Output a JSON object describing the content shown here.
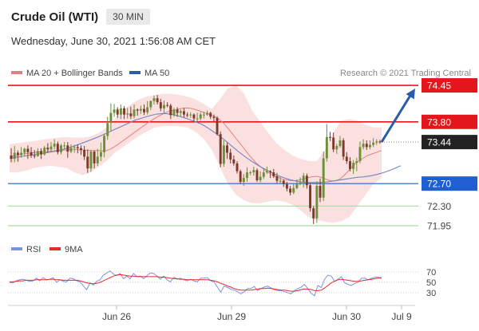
{
  "header": {
    "title": "Crude Oil (WTI)",
    "timeframe": "30 MIN",
    "datetime": "Wednesday, June 30, 2021 1:56:08 AM CET"
  },
  "legend": {
    "ma20_label": "MA 20 + Bollinger Bands",
    "ma50_label": "MA 50",
    "copyright": "Research © 2021 Trading Central"
  },
  "rsi_legend": {
    "rsi_label": "RSI",
    "ma_label": "9MA"
  },
  "colors": {
    "resistance": "#e3171b",
    "pivot": "#1f5fd1",
    "support": "#a9d9a0",
    "current": "#222222",
    "arrow": "#2a5ca8",
    "up_candle": "#6b8f3a",
    "down_candle": "#7b3a2a",
    "ma20": "#e57f7f",
    "bands": "#fadada",
    "ma50": "#7386c2",
    "rsi": "#7b93e2",
    "rsi_ma": "#e22b2b"
  },
  "chart_data": {
    "type": "line",
    "subtype": "candlestick-with-levels",
    "y_range": [
      71.85,
      74.55
    ],
    "levels": [
      {
        "value": 74.45,
        "label": "74.45",
        "kind": "resistance"
      },
      {
        "value": 73.8,
        "label": "73.80",
        "kind": "resistance"
      },
      {
        "value": 73.44,
        "label": "73.44",
        "kind": "current"
      },
      {
        "value": 72.7,
        "label": "72.70",
        "kind": "pivot"
      },
      {
        "value": 72.3,
        "label": "72.30",
        "kind": "support"
      },
      {
        "value": 71.95,
        "label": "71.95",
        "kind": "support"
      }
    ],
    "forecast": {
      "from": 73.44,
      "to": 74.45,
      "direction": "up"
    },
    "x_ticks": [
      "Jun 26",
      "Jun 29",
      "Jun 30",
      "Jul 9"
    ],
    "candles": {
      "open": [
        73.2,
        73.14,
        73.25,
        73.21,
        73.25,
        73.32,
        73.26,
        73.2,
        73.19,
        73.28,
        73.22,
        73.34,
        73.31,
        73.36,
        73.41,
        73.26,
        73.38,
        73.38,
        73.27,
        73.34,
        73.35,
        73.33,
        73.3,
        73.18,
        72.97,
        73.27,
        73.06,
        73.18,
        73.26,
        73.55,
        73.78,
        73.96,
        74.02,
        73.93,
        74.04,
        73.93,
        73.95,
        73.9,
        74.02,
        74.0,
        74.03,
        73.97,
        74.06,
        74.17,
        74.22,
        74.15,
        74.04,
        74.1,
        74.09,
        73.92,
        74.02,
        73.96,
        73.99,
        73.93,
        73.92,
        73.93,
        73.86,
        73.86,
        73.93,
        73.93,
        73.96,
        73.89,
        73.87,
        73.58,
        73.05,
        73.38,
        73.25,
        73.13,
        73.06,
        72.92,
        72.73,
        72.8,
        72.9,
        72.9,
        72.94,
        72.76,
        72.82,
        72.9,
        72.92,
        72.9,
        72.83,
        72.75,
        72.75,
        72.69,
        72.61,
        72.54,
        72.62,
        72.69,
        72.72,
        72.84,
        72.67,
        72.26,
        72.08,
        72.66,
        72.45,
        73.15,
        73.53,
        73.52,
        73.31,
        73.37,
        73.47,
        73.18,
        73.1,
        72.96,
        73.07,
        73.1,
        73.35,
        73.41,
        73.35,
        73.39,
        73.43,
        73.45
      ],
      "high": [
        73.33,
        73.37,
        73.29,
        73.35,
        73.34,
        73.38,
        73.35,
        73.3,
        73.33,
        73.33,
        73.37,
        73.42,
        73.44,
        73.49,
        73.45,
        73.41,
        73.44,
        73.44,
        73.4,
        73.39,
        73.4,
        73.38,
        73.37,
        73.31,
        73.3,
        73.29,
        73.32,
        73.43,
        73.59,
        73.89,
        74.13,
        74.12,
        74.06,
        74.11,
        74.08,
        74.05,
        74.07,
        74.11,
        74.04,
        74.09,
        74.11,
        74.17,
        74.18,
        74.27,
        74.28,
        74.21,
        74.18,
        74.15,
        74.12,
        74.05,
        74.06,
        74.02,
        74.05,
        73.97,
        73.97,
        73.95,
        73.96,
        73.97,
        73.98,
        74.0,
        73.98,
        73.93,
        73.9,
        73.63,
        73.47,
        73.43,
        73.32,
        73.2,
        73.1,
        72.95,
        72.87,
        72.99,
        72.93,
        73.0,
        72.97,
        72.92,
        72.95,
        73.0,
        72.94,
        72.96,
        72.89,
        72.82,
        72.77,
        72.73,
        72.66,
        72.7,
        72.77,
        72.81,
        72.89,
        72.88,
        72.71,
        72.3,
        72.74,
        72.79,
        73.27,
        73.76,
        73.62,
        73.61,
        73.41,
        73.55,
        73.51,
        73.26,
        73.17,
        73.12,
        73.16,
        73.45,
        73.49,
        73.47,
        73.47,
        73.51,
        73.49,
        73.48
      ],
      "low": [
        73.08,
        73.08,
        73.09,
        73.16,
        73.19,
        73.14,
        73.16,
        73.15,
        73.18,
        73.14,
        73.2,
        73.25,
        73.26,
        73.31,
        73.22,
        73.22,
        73.31,
        73.16,
        73.24,
        73.25,
        73.24,
        73.21,
        73.12,
        72.89,
        72.91,
        72.97,
        73.01,
        73.1,
        73.17,
        73.48,
        73.64,
        73.89,
        73.87,
        73.85,
        73.85,
        73.86,
        73.85,
        73.86,
        73.91,
        73.94,
        73.92,
        73.93,
        74.01,
        74.11,
        74.11,
        73.99,
        73.95,
        74.06,
        73.85,
        73.89,
        73.89,
        73.89,
        73.88,
        73.88,
        73.87,
        73.79,
        73.81,
        73.82,
        73.86,
        73.91,
        73.85,
        73.8,
        73.56,
        72.99,
        73.0,
        73.14,
        73.06,
        73.02,
        72.88,
        72.69,
        72.66,
        72.73,
        72.85,
        72.84,
        72.73,
        72.72,
        72.78,
        72.87,
        72.8,
        72.8,
        72.71,
        72.7,
        72.64,
        72.56,
        72.49,
        72.51,
        72.6,
        72.67,
        72.63,
        72.61,
        72.2,
        71.98,
        72.0,
        72.37,
        72.39,
        73.09,
        73.46,
        73.26,
        73.23,
        73.34,
        73.12,
        73.05,
        72.92,
        72.87,
        72.92,
        73.06,
        73.31,
        73.3,
        73.31,
        73.35,
        73.39,
        73.41
      ],
      "close": [
        73.14,
        73.25,
        73.21,
        73.25,
        73.32,
        73.26,
        73.2,
        73.19,
        73.28,
        73.22,
        73.34,
        73.31,
        73.36,
        73.41,
        73.26,
        73.38,
        73.38,
        73.27,
        73.34,
        73.35,
        73.33,
        73.3,
        73.18,
        72.97,
        73.27,
        73.06,
        73.18,
        73.26,
        73.55,
        73.78,
        73.96,
        74.02,
        73.93,
        74.04,
        73.93,
        73.95,
        73.9,
        74.02,
        74.0,
        74.03,
        73.97,
        74.06,
        74.17,
        74.22,
        74.15,
        74.04,
        74.1,
        74.09,
        73.92,
        74.02,
        73.96,
        73.99,
        73.93,
        73.92,
        73.93,
        73.86,
        73.86,
        73.93,
        73.93,
        73.96,
        73.89,
        73.87,
        73.58,
        73.05,
        73.38,
        73.25,
        73.13,
        73.06,
        72.92,
        72.73,
        72.8,
        72.9,
        72.9,
        72.94,
        72.76,
        72.82,
        72.9,
        72.92,
        72.9,
        72.83,
        72.75,
        72.75,
        72.69,
        72.61,
        72.54,
        72.62,
        72.69,
        72.72,
        72.84,
        72.67,
        72.26,
        72.08,
        72.66,
        72.45,
        73.15,
        73.53,
        73.52,
        73.31,
        73.37,
        73.47,
        73.18,
        73.1,
        72.96,
        73.07,
        73.1,
        73.35,
        73.41,
        73.35,
        73.39,
        73.43,
        73.45,
        73.44
      ]
    },
    "ma20": [
      73.18,
      73.19,
      73.21,
      73.23,
      73.24,
      73.25,
      73.26,
      73.27,
      73.27,
      73.28,
      73.29,
      73.29,
      73.3,
      73.31,
      73.31,
      73.3,
      73.3,
      73.29,
      73.29,
      73.29,
      73.28,
      73.29,
      73.33,
      73.38,
      73.44,
      73.5,
      73.56,
      73.62,
      73.68,
      73.74,
      73.8,
      73.85,
      73.9,
      73.94,
      73.98,
      74.0,
      74.02,
      74.04,
      74.05,
      74.04,
      74.02,
      73.99,
      73.96,
      73.93,
      73.9,
      73.85,
      73.78,
      73.68,
      73.58,
      73.47,
      73.37,
      73.26,
      73.16,
      73.07,
      73.0,
      72.93,
      72.88,
      72.83,
      72.8,
      72.77,
      72.76,
      72.75,
      72.76,
      72.78,
      72.8,
      72.82,
      72.83,
      72.81,
      72.78,
      72.75,
      72.75,
      72.78,
      72.85,
      72.94,
      73.03,
      73.1,
      73.15,
      73.2,
      73.23,
      73.26,
      73.29
    ],
    "ma50": [
      73.15,
      73.17,
      73.19,
      73.21,
      73.23,
      73.25,
      73.27,
      73.3,
      73.34,
      73.38,
      73.43,
      73.48,
      73.53,
      73.59,
      73.65,
      73.71,
      73.77,
      73.83,
      73.87,
      73.91,
      73.94,
      73.95,
      73.93,
      73.9,
      73.86,
      73.81,
      73.76,
      73.68,
      73.59,
      73.49,
      73.38,
      73.27,
      73.17,
      73.08,
      73.0,
      72.93,
      72.86,
      72.81,
      72.77,
      72.74,
      72.72,
      72.72,
      72.72,
      72.73,
      72.75,
      72.77,
      72.79,
      72.81,
      72.82,
      72.84,
      72.87,
      72.91,
      72.96,
      73.02
    ],
    "bb_upper": [
      73.4,
      73.42,
      73.44,
      73.46,
      73.48,
      73.5,
      73.52,
      73.53,
      73.52,
      73.52,
      73.54,
      73.6,
      73.7,
      73.85,
      74.0,
      74.12,
      74.2,
      74.25,
      74.28,
      74.3,
      74.3,
      74.28,
      74.25,
      74.2,
      74.12,
      74.03,
      74.2,
      74.4,
      74.45,
      74.3,
      74.0,
      73.8,
      73.6,
      73.42,
      73.3,
      73.2,
      73.14,
      73.1,
      73.1,
      73.3,
      73.6,
      73.82,
      73.85,
      73.82,
      73.75,
      73.7,
      73.7
    ],
    "bb_lower": [
      72.9,
      72.9,
      72.93,
      72.98,
      73.0,
      73.02,
      73.0,
      72.98,
      72.9,
      72.85,
      72.9,
      73.0,
      73.1,
      73.25,
      73.35,
      73.45,
      73.55,
      73.63,
      73.7,
      73.72,
      73.73,
      73.72,
      73.7,
      73.62,
      73.5,
      73.3,
      73.0,
      72.7,
      72.5,
      72.4,
      72.35,
      72.35,
      72.38,
      72.4,
      72.38,
      72.32,
      72.22,
      72.1,
      72.05,
      72.02,
      72.0,
      72.03,
      72.1,
      72.3,
      72.5,
      72.7,
      72.8
    ],
    "rsi": {
      "range": [
        10,
        90
      ],
      "ticks": [
        70,
        50,
        30
      ],
      "rsi": [
        50,
        49,
        53,
        55,
        56,
        54,
        52,
        53,
        58,
        53,
        59,
        55,
        56,
        59,
        50,
        55,
        52,
        51,
        58,
        57,
        53,
        51,
        43,
        36,
        49,
        45,
        52,
        55,
        64,
        68,
        72,
        66,
        63,
        67,
        57,
        62,
        57,
        67,
        61,
        62,
        57,
        63,
        68,
        67,
        62,
        56,
        62,
        55,
        51,
        60,
        56,
        58,
        55,
        53,
        56,
        53,
        51,
        58,
        58,
        59,
        53,
        51,
        41,
        31,
        43,
        40,
        37,
        35,
        32,
        28,
        32,
        38,
        38,
        42,
        34,
        38,
        41,
        43,
        39,
        36,
        34,
        34,
        32,
        30,
        28,
        34,
        38,
        41,
        46,
        38,
        29,
        24,
        44,
        40,
        56,
        64,
        62,
        52,
        56,
        61,
        49,
        46,
        44,
        48,
        50,
        58,
        58,
        55,
        58,
        60,
        60,
        59
      ],
      "ma": [
        51,
        51,
        52,
        53,
        53,
        54,
        54,
        54,
        55,
        55,
        55,
        55,
        56,
        56,
        55,
        55,
        54,
        54,
        54,
        54,
        54,
        53,
        51,
        49,
        48,
        47,
        48,
        50,
        53,
        56,
        59,
        62,
        64,
        65,
        64,
        63,
        62,
        62,
        61,
        61,
        61,
        61,
        61,
        61,
        61,
        60,
        60,
        59,
        58,
        57,
        57,
        56,
        56,
        55,
        55,
        55,
        55,
        55,
        55,
        55,
        54,
        53,
        51,
        48,
        46,
        43,
        41,
        38,
        36,
        35,
        35,
        35,
        35,
        36,
        37,
        38,
        38,
        39,
        38,
        37,
        36,
        35,
        35,
        34,
        33,
        33,
        34,
        36,
        37,
        37,
        36,
        34,
        34,
        35,
        39,
        44,
        49,
        52,
        55,
        56,
        55,
        54,
        53,
        52,
        52,
        53,
        54,
        55,
        56,
        57,
        58,
        58
      ]
    }
  }
}
